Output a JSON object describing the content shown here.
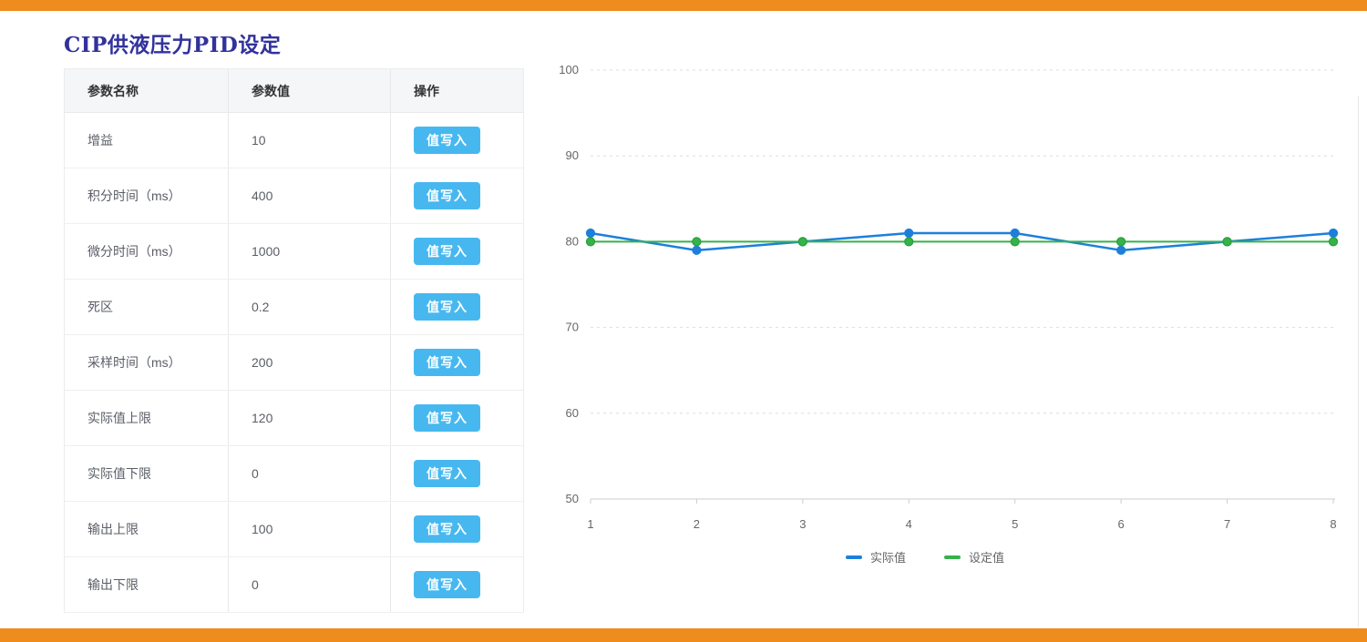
{
  "page": {
    "accent_color": "#ef8c1e"
  },
  "header": {
    "title": "CIP供液压力PID设定",
    "title_color": "#32329b"
  },
  "table": {
    "columns": [
      "参数名称",
      "参数值",
      "操作"
    ],
    "action_label": "值写入",
    "button_color": "#47b8ef",
    "rows": [
      {
        "name": "增益",
        "value": "10"
      },
      {
        "name": "积分时间（ms）",
        "value": "400"
      },
      {
        "name": "微分时间（ms）",
        "value": "1000"
      },
      {
        "name": "死区",
        "value": "0.2"
      },
      {
        "name": "采样时间（ms）",
        "value": "200"
      },
      {
        "name": "实际值上限",
        "value": "120"
      },
      {
        "name": "实际值下限",
        "value": "0"
      },
      {
        "name": "输出上限",
        "value": "100"
      },
      {
        "name": "输出下限",
        "value": "0"
      }
    ]
  },
  "chart_data": {
    "type": "line",
    "x": [
      1,
      2,
      3,
      4,
      5,
      6,
      7,
      8
    ],
    "series": [
      {
        "name": "实际值",
        "color": "#1d7fdb",
        "dot_border": "#1d7fdb",
        "values": [
          81,
          79,
          80,
          81,
          81,
          79,
          80,
          81
        ]
      },
      {
        "name": "设定值",
        "color": "#36b24a",
        "dot_border": "#2a9e3a",
        "values": [
          80,
          80,
          80,
          80,
          80,
          80,
          80,
          80
        ]
      }
    ],
    "ylim": [
      50,
      100
    ],
    "yticks": [
      50,
      60,
      70,
      80,
      90,
      100
    ],
    "grid": "dashed-horizontal",
    "legend_position": "bottom",
    "axis_color": "#cccccc",
    "grid_color": "#dddddd",
    "tick_label_color": "#666666"
  }
}
